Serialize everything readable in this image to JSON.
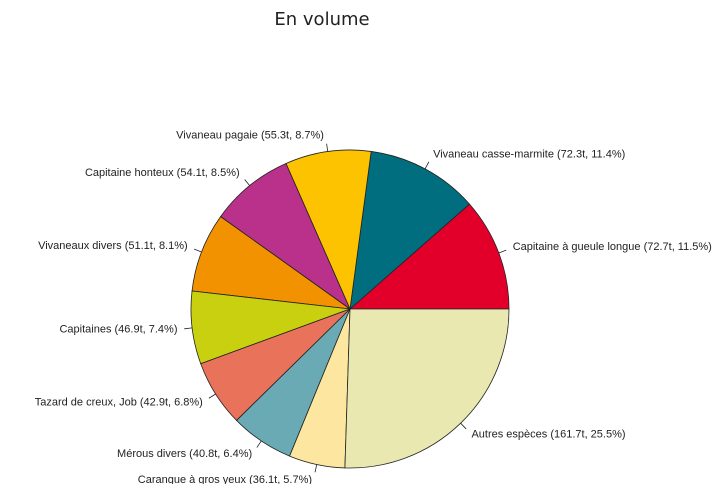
{
  "chart_data": {
    "type": "pie",
    "title": "En volume",
    "value_labels": [
      "Capitaine à gueule longue (72.7t, 11.5%)",
      "Vivaneau casse-marmite (72.3t, 11.4%)",
      "Vivaneau pagaie (55.3t, 8.7%)",
      "Capitaine honteux (54.1t, 8.5%)",
      "Vivaneaux divers (51.1t, 8.1%)",
      "Capitaines (46.9t, 7.4%)",
      "Tazard de creux, Job (42.9t, 6.8%)",
      "Mérous divers (40.8t, 6.4%)",
      "Carangue à gros yeux (36.1t, 5.7%)",
      "Autres espèces (161.7t, 25.5%)"
    ],
    "values": [
      72.7,
      72.3,
      55.3,
      54.1,
      51.1,
      46.9,
      42.9,
      40.8,
      36.1,
      161.7
    ],
    "colors": [
      "#e2002a",
      "#006e7f",
      "#fdc300",
      "#b9318a",
      "#f39200",
      "#c8d010",
      "#e8735a",
      "#6aaab5",
      "#fce6a0",
      "#e8e8b0"
    ]
  }
}
